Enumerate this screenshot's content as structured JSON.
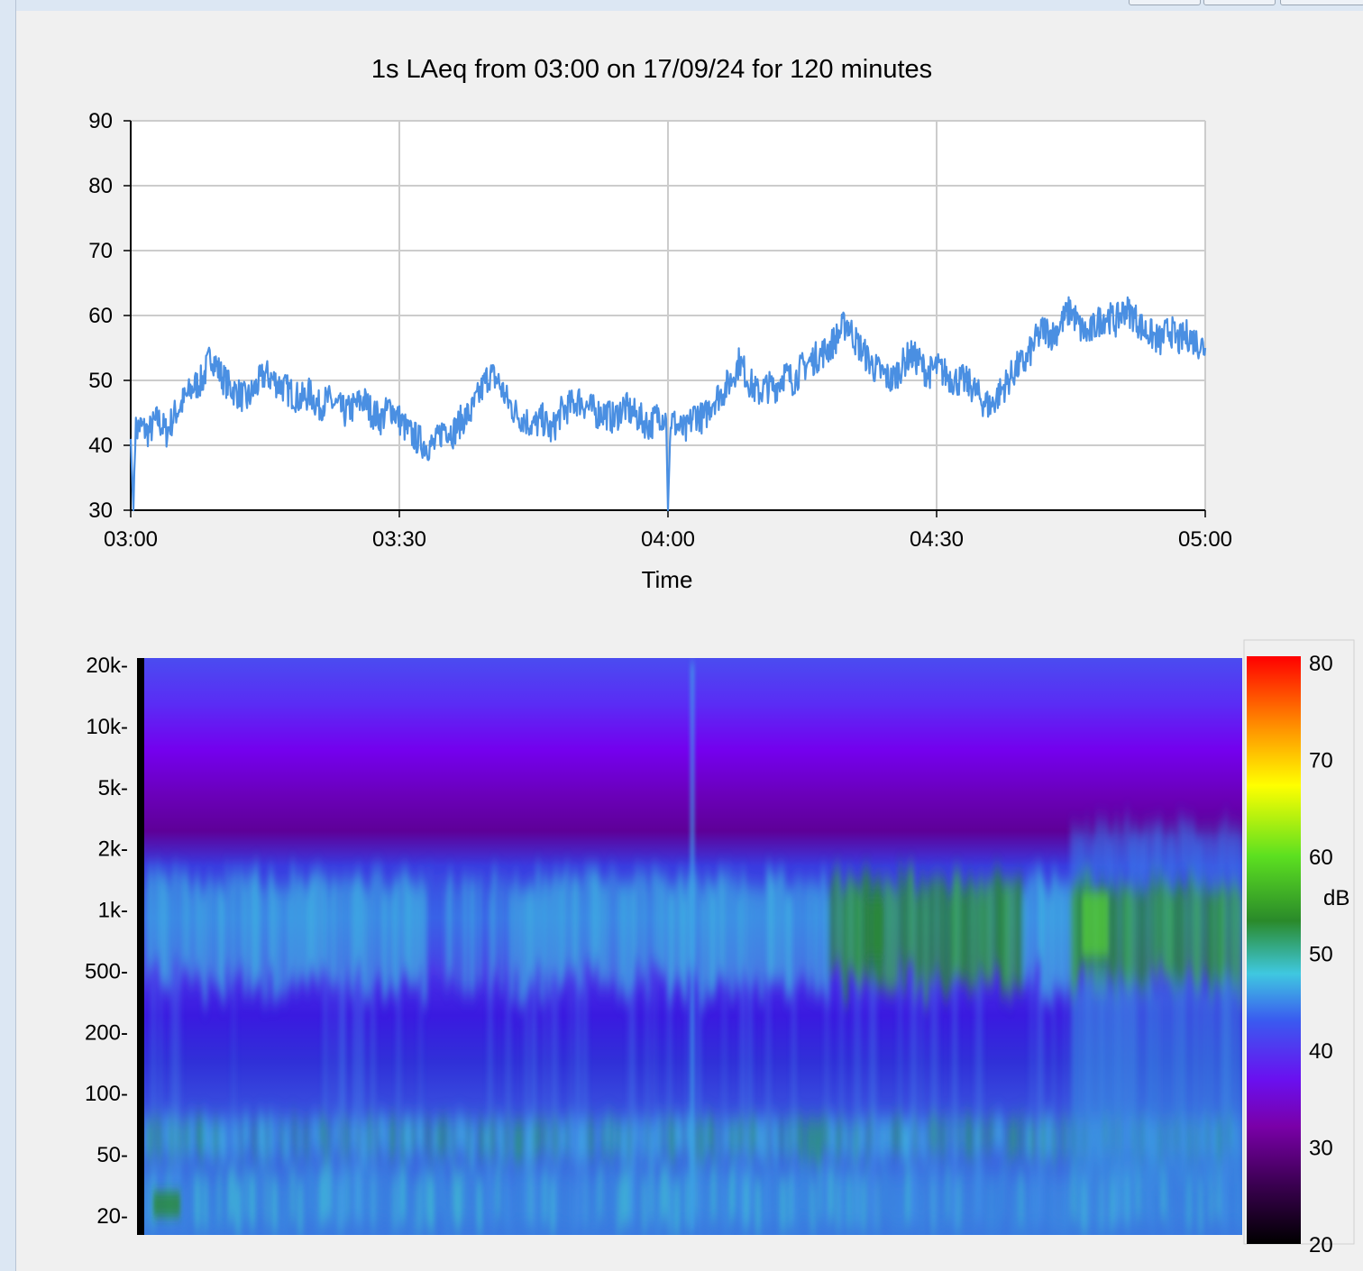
{
  "chart_data": [
    {
      "type": "line",
      "title": "1s LAeq from 03:00 on 17/09/24 for 120 minutes",
      "xlabel": "Time",
      "ylabel": "",
      "x_ticks": [
        "03:00",
        "03:30",
        "04:00",
        "04:30",
        "05:00"
      ],
      "y_ticks": [
        "90",
        "80",
        "70",
        "60",
        "50",
        "40",
        "30"
      ],
      "xlim": [
        "03:00",
        "05:00"
      ],
      "ylim": [
        30,
        90
      ],
      "grid": true,
      "legend": "none",
      "series": [
        {
          "color": "#4a8fe2",
          "x_minutes": [
            0,
            0.3,
            0.5,
            1,
            2,
            3,
            4,
            5,
            6,
            7,
            8,
            9,
            10,
            11,
            12,
            13,
            14,
            15,
            16,
            17,
            18,
            19,
            20,
            21,
            22,
            23,
            24,
            25,
            26,
            27,
            28,
            29,
            30,
            31,
            32,
            33,
            34,
            35,
            36,
            37,
            38,
            39,
            40,
            41,
            42,
            43,
            44,
            45,
            46,
            47,
            48,
            49,
            50,
            51,
            52,
            53,
            54,
            55,
            56,
            57,
            58,
            59,
            59.8,
            60,
            60.3,
            61,
            62,
            63,
            64,
            65,
            66,
            67,
            68,
            69,
            70,
            71,
            72,
            73,
            74,
            75,
            76,
            77,
            78,
            79,
            80,
            81,
            82,
            83,
            84,
            85,
            86,
            87,
            88,
            89,
            90,
            91,
            92,
            93,
            94,
            95,
            96,
            97,
            98,
            99,
            100,
            101,
            102,
            103,
            104,
            105,
            106,
            107,
            108,
            109,
            110,
            111,
            112,
            113,
            114,
            115,
            116,
            117,
            118,
            119,
            120
          ],
          "values": [
            41,
            30,
            42,
            43,
            42,
            44,
            42,
            45,
            47,
            49,
            50,
            54,
            51,
            49,
            48,
            47,
            49,
            51,
            50,
            49,
            48,
            47,
            48,
            46,
            47,
            46,
            45,
            46,
            47,
            45,
            44,
            46,
            44,
            42,
            41,
            40,
            40,
            43,
            42,
            44,
            45,
            48,
            51,
            50,
            47,
            45,
            44,
            43,
            44,
            42,
            45,
            46,
            47,
            46,
            45,
            45,
            44,
            46,
            45,
            44,
            43,
            45,
            44,
            30,
            44,
            43,
            42,
            45,
            44,
            47,
            48,
            50,
            53,
            50,
            48,
            49,
            49,
            51,
            50,
            52,
            53,
            54,
            55,
            57,
            59,
            56,
            54,
            52,
            51,
            50,
            52,
            54,
            53,
            51,
            52,
            51,
            50,
            50,
            49,
            47,
            46,
            48,
            50,
            52,
            53,
            56,
            58,
            57,
            59,
            61,
            58,
            57,
            59,
            60,
            59,
            61,
            60,
            58,
            57,
            56,
            58,
            56,
            57,
            56,
            55
          ]
        }
      ]
    },
    {
      "type": "heatmap",
      "y_ticks": [
        "20k-",
        "10k-",
        "5k-",
        "2k-",
        "1k-",
        "500-",
        "200-",
        "100-",
        "50-",
        "20-"
      ],
      "colorbar_label": "dB",
      "colorbar_ticks": [
        "80",
        "70",
        "60",
        "50",
        "40",
        "30",
        "20"
      ],
      "colorbar_range": [
        20,
        80
      ],
      "colorscale": [
        "#000000",
        "#5a0088",
        "#7a00f0",
        "#3a5af0",
        "#3fc8e0",
        "#2a8a2a",
        "#5ce020",
        "#ffff00",
        "#ff9000",
        "#ff0000"
      ]
    }
  ]
}
